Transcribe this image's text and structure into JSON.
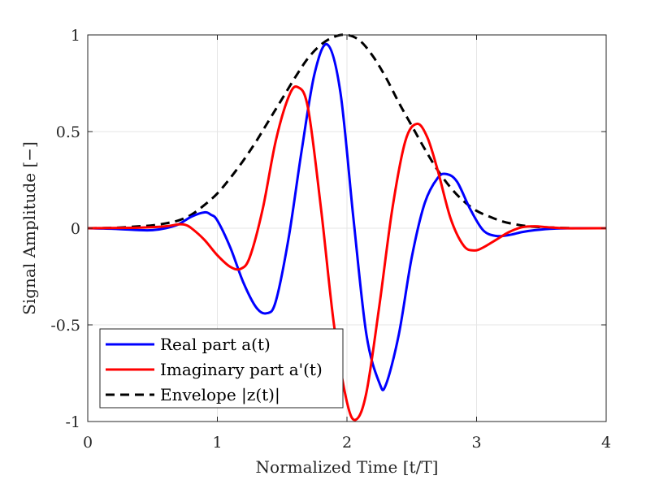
{
  "chart_data": {
    "type": "line",
    "title": "",
    "xlabel": "Normalized Time [t/T]",
    "ylabel": "Signal Amplitude [−]",
    "xlim": [
      0,
      4
    ],
    "ylim": [
      -1,
      1
    ],
    "xticks": [
      0,
      1,
      2,
      3,
      4
    ],
    "xtick_labels": [
      "0",
      "1",
      "2",
      "3",
      "4"
    ],
    "yticks": [
      -1,
      -0.5,
      0,
      0.5,
      1
    ],
    "ytick_labels": [
      "-1",
      "-0.5",
      "0",
      "0.5",
      "1"
    ],
    "grid": true,
    "legend_location": "bottom-left",
    "series": [
      {
        "name": "Real part a(t)",
        "color": "#0000ff",
        "style": "solid",
        "x": [
          0,
          0.2,
          0.4,
          0.5,
          0.6,
          0.7,
          0.8,
          0.9,
          0.95,
          1.0,
          1.1,
          1.2,
          1.3,
          1.38,
          1.45,
          1.55,
          1.65,
          1.75,
          1.85,
          1.95,
          2.05,
          2.15,
          2.25,
          2.3,
          2.4,
          2.5,
          2.6,
          2.7,
          2.77,
          2.85,
          2.95,
          3.05,
          3.15,
          3.25,
          3.35,
          3.45,
          3.6,
          3.8,
          4.0
        ],
        "y": [
          0,
          -0.003,
          -0.01,
          -0.01,
          0.0,
          0.02,
          0.06,
          0.082,
          0.07,
          0.04,
          -0.1,
          -0.28,
          -0.41,
          -0.44,
          -0.38,
          -0.05,
          0.4,
          0.8,
          0.95,
          0.7,
          0.05,
          -0.55,
          -0.8,
          -0.81,
          -0.55,
          -0.15,
          0.13,
          0.26,
          0.28,
          0.24,
          0.1,
          -0.01,
          -0.04,
          -0.035,
          -0.02,
          -0.01,
          -0.002,
          0,
          0
        ]
      },
      {
        "name": "Imaginary part a'(t)",
        "color": "#ff0000",
        "style": "solid",
        "x": [
          0,
          0.4,
          0.6,
          0.7,
          0.75,
          0.8,
          0.9,
          1.0,
          1.1,
          1.18,
          1.25,
          1.35,
          1.45,
          1.55,
          1.62,
          1.7,
          1.8,
          1.9,
          2.0,
          2.07,
          2.15,
          2.25,
          2.35,
          2.45,
          2.54,
          2.62,
          2.7,
          2.8,
          2.9,
          2.98,
          3.05,
          3.15,
          3.25,
          3.35,
          3.45,
          3.55,
          3.7,
          4.0
        ],
        "y": [
          0,
          0.003,
          0.01,
          0.02,
          0.018,
          0.0,
          -0.06,
          -0.14,
          -0.2,
          -0.21,
          -0.15,
          0.1,
          0.45,
          0.68,
          0.73,
          0.62,
          0.1,
          -0.5,
          -0.9,
          -0.99,
          -0.85,
          -0.4,
          0.1,
          0.45,
          0.54,
          0.47,
          0.3,
          0.05,
          -0.09,
          -0.115,
          -0.1,
          -0.06,
          -0.02,
          0.005,
          0.01,
          0.005,
          0,
          0
        ]
      },
      {
        "name": "Envelope |z(t)|",
        "color": "#000000",
        "style": "dashed",
        "x": [
          0,
          0.2,
          0.4,
          0.5,
          0.6,
          0.7,
          0.8,
          0.9,
          1.0,
          1.1,
          1.2,
          1.3,
          1.4,
          1.5,
          1.6,
          1.7,
          1.8,
          1.9,
          2.0,
          2.1,
          2.2,
          2.3,
          2.4,
          2.5,
          2.6,
          2.7,
          2.8,
          2.9,
          3.0,
          3.1,
          3.2,
          3.3,
          3.4,
          3.5,
          3.6,
          3.7,
          3.8,
          4.0
        ],
        "y": [
          0,
          0.002,
          0.01,
          0.015,
          0.025,
          0.04,
          0.07,
          0.12,
          0.18,
          0.26,
          0.35,
          0.45,
          0.56,
          0.67,
          0.78,
          0.88,
          0.95,
          0.99,
          1.0,
          0.97,
          0.89,
          0.78,
          0.65,
          0.53,
          0.41,
          0.3,
          0.21,
          0.14,
          0.09,
          0.06,
          0.035,
          0.02,
          0.01,
          0.006,
          0.003,
          0.001,
          0,
          0
        ]
      }
    ]
  }
}
